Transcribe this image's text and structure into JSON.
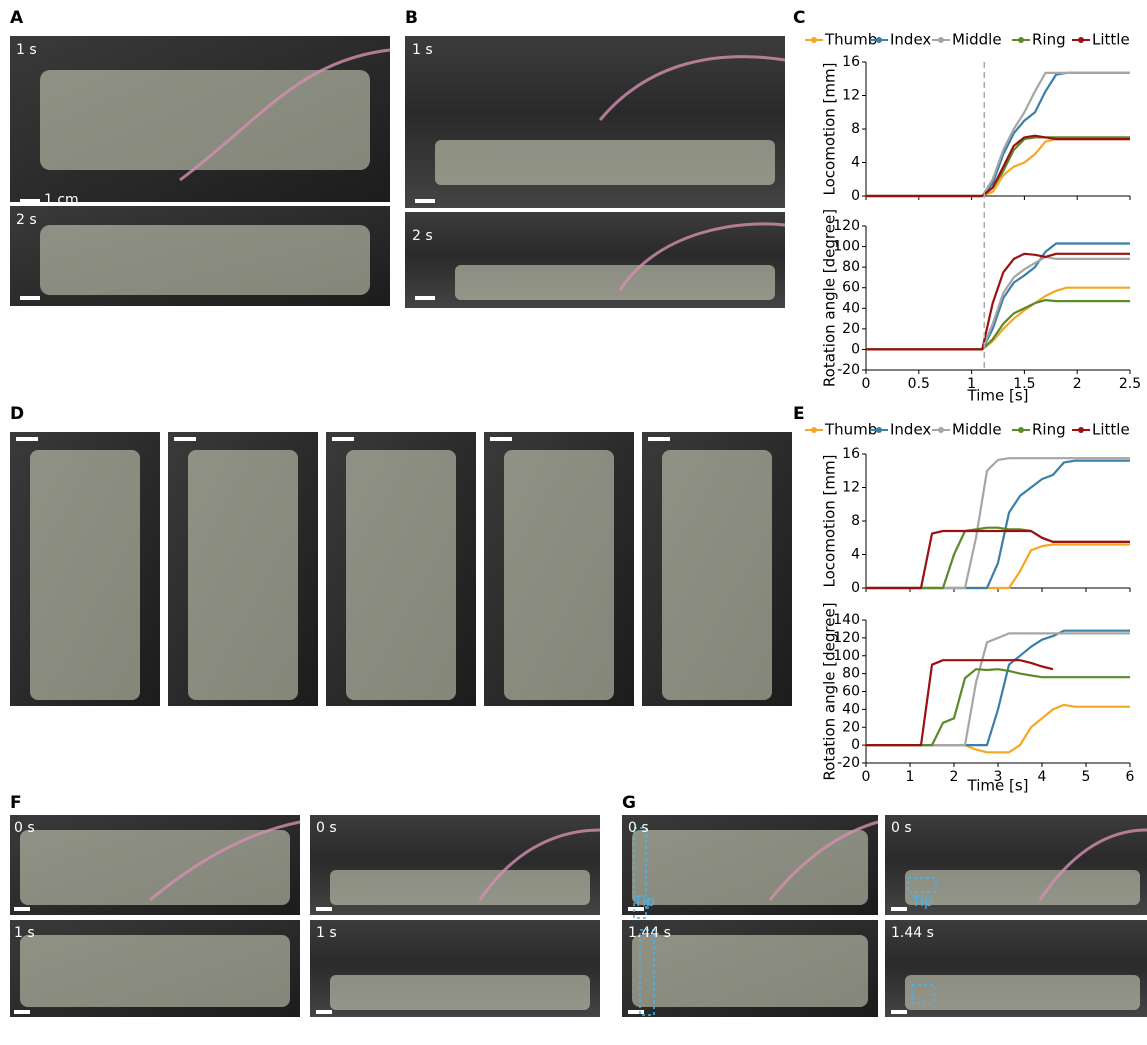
{
  "panel_labels": [
    "A",
    "B",
    "C",
    "D",
    "E",
    "F",
    "G"
  ],
  "a": {
    "times": [
      "1 s",
      "2 s"
    ],
    "scale_bar": "1 cm"
  },
  "b": {
    "times": [
      "1 s",
      "2 s"
    ]
  },
  "f": {
    "times": [
      "0 s",
      "0 s",
      "1 s",
      "1 s"
    ]
  },
  "g": {
    "times": [
      "0 s",
      "0 s",
      "1.44 s",
      "1.44 s"
    ],
    "tip": [
      "Tip",
      "Tip"
    ]
  },
  "chart_data": [
    {
      "type": "line",
      "xlabel": "Time [s]",
      "xlim": [
        0,
        2.5
      ],
      "xticks": [
        0,
        0.5,
        1,
        1.5,
        2,
        2.5
      ],
      "vline": 1.12,
      "x": [
        0,
        0.1,
        0.2,
        0.3,
        0.4,
        0.5,
        0.6,
        0.7,
        0.8,
        0.9,
        1.0,
        1.1,
        1.2,
        1.3,
        1.4,
        1.5,
        1.6,
        1.7,
        1.8,
        1.9,
        2.0,
        2.1,
        2.2,
        2.3,
        2.4,
        2.5
      ],
      "series": [
        {
          "name": "Thumb",
          "color": "#f5a623"
        },
        {
          "name": "Index",
          "color": "#3b7fa8"
        },
        {
          "name": "Middle",
          "color": "#a6a6a6"
        },
        {
          "name": "Ring",
          "color": "#5a8a2a"
        },
        {
          "name": "Little",
          "color": "#9b1111"
        }
      ],
      "subplots": [
        {
          "ylabel": "Locomotion [mm]",
          "ylim": [
            0,
            16
          ],
          "yticks": [
            0,
            4,
            8,
            12,
            16
          ],
          "series": [
            {
              "values": [
                0,
                0,
                0,
                0,
                0,
                0,
                0,
                0,
                0,
                0,
                0,
                0,
                0.5,
                2.5,
                3.5,
                4,
                5,
                6.5,
                6.8,
                6.8,
                6.8,
                6.8,
                6.8,
                6.8,
                6.8,
                6.8
              ]
            },
            {
              "values": [
                0,
                0,
                0,
                0,
                0,
                0,
                0,
                0,
                0,
                0,
                0,
                0,
                1.5,
                5,
                7.5,
                9,
                10,
                12.5,
                14.5,
                14.7,
                14.7,
                14.7,
                14.7,
                14.7,
                14.7,
                14.7
              ]
            },
            {
              "values": [
                0,
                0,
                0,
                0,
                0,
                0,
                0,
                0,
                0,
                0,
                0,
                0,
                2,
                5.5,
                8,
                10,
                12.5,
                14.7,
                14.7,
                14.7,
                14.7,
                14.7,
                14.7,
                14.7,
                14.7,
                14.7
              ]
            },
            {
              "values": [
                0,
                0,
                0,
                0,
                0,
                0,
                0,
                0,
                0,
                0,
                0,
                0,
                1,
                3,
                5.5,
                6.8,
                7,
                7,
                7,
                7,
                7,
                7,
                7,
                7,
                7,
                7
              ]
            },
            {
              "values": [
                0,
                0,
                0,
                0,
                0,
                0,
                0,
                0,
                0,
                0,
                0,
                0,
                1,
                3.5,
                6,
                7,
                7.2,
                7,
                6.8,
                6.8,
                6.8,
                6.8,
                6.8,
                6.8,
                6.8,
                6.8
              ]
            }
          ]
        },
        {
          "ylabel": "Rotation angle [degree]",
          "ylim": [
            -20,
            120
          ],
          "yticks": [
            -20,
            0,
            20,
            40,
            60,
            80,
            100,
            120
          ],
          "series": [
            {
              "values": [
                0,
                0,
                0,
                0,
                0,
                0,
                0,
                0,
                0,
                0,
                0,
                0,
                8,
                20,
                30,
                38,
                45,
                52,
                57,
                60,
                60,
                60,
                60,
                60,
                60,
                60
              ]
            },
            {
              "values": [
                0,
                0,
                0,
                0,
                0,
                0,
                0,
                0,
                0,
                0,
                0,
                0,
                20,
                50,
                65,
                72,
                80,
                95,
                103,
                103,
                103,
                103,
                103,
                103,
                103,
                103
              ]
            },
            {
              "values": [
                0,
                0,
                0,
                0,
                0,
                0,
                0,
                0,
                0,
                0,
                0,
                0,
                25,
                55,
                70,
                78,
                84,
                90,
                88,
                88,
                88,
                88,
                88,
                88,
                88,
                88
              ]
            },
            {
              "values": [
                0,
                0,
                0,
                0,
                0,
                0,
                0,
                0,
                0,
                0,
                0,
                0,
                10,
                25,
                35,
                40,
                45,
                48,
                47,
                47,
                47,
                47,
                47,
                47,
                47,
                47
              ]
            },
            {
              "values": [
                0,
                0,
                0,
                0,
                0,
                0,
                0,
                0,
                0,
                0,
                0,
                0,
                45,
                75,
                88,
                93,
                92,
                90,
                93,
                93,
                93,
                93,
                93,
                93,
                93,
                93
              ]
            }
          ]
        }
      ]
    },
    {
      "type": "line",
      "xlabel": "Time [s]",
      "xlim": [
        0,
        6
      ],
      "xticks": [
        0,
        1,
        2,
        3,
        4,
        5,
        6
      ],
      "x": [
        0,
        0.25,
        0.5,
        0.75,
        1,
        1.25,
        1.5,
        1.75,
        2,
        2.25,
        2.5,
        2.75,
        3,
        3.25,
        3.5,
        3.75,
        4,
        4.25,
        4.5,
        4.75,
        5,
        5.25,
        5.5,
        5.75,
        6
      ],
      "series": [
        {
          "name": "Thumb",
          "color": "#f5a623"
        },
        {
          "name": "Index",
          "color": "#3b7fa8"
        },
        {
          "name": "Middle",
          "color": "#a6a6a6"
        },
        {
          "name": "Ring",
          "color": "#5a8a2a"
        },
        {
          "name": "Little",
          "color": "#9b1111"
        }
      ],
      "subplots": [
        {
          "ylabel": "Locomotion [mm]",
          "ylim": [
            0,
            16
          ],
          "yticks": [
            0,
            4,
            8,
            12,
            16
          ],
          "series": [
            {
              "values": [
                0,
                0,
                0,
                0,
                0,
                0,
                0,
                0,
                0,
                0,
                0,
                0,
                0,
                0,
                2,
                4.5,
                5,
                5.2,
                5.2,
                5.2,
                5.2,
                5.2,
                5.2,
                5.2,
                5.2
              ]
            },
            {
              "values": [
                0,
                0,
                0,
                0,
                0,
                0,
                0,
                0,
                0,
                0,
                0,
                0,
                3,
                9,
                11,
                12,
                13,
                13.5,
                15,
                15.2,
                15.2,
                15.2,
                15.2,
                15.2,
                15.2
              ]
            },
            {
              "values": [
                0,
                0,
                0,
                0,
                0,
                0,
                0,
                0,
                0,
                0,
                6,
                14,
                15.3,
                15.5,
                15.5,
                15.5,
                15.5,
                15.5,
                15.5,
                15.5,
                15.5,
                15.5,
                15.5,
                15.5,
                15.5
              ]
            },
            {
              "values": [
                0,
                0,
                0,
                0,
                0,
                0,
                0,
                0,
                4,
                6.8,
                7,
                7.2,
                7.2,
                7,
                7,
                6.8,
                6,
                5.5,
                5.5,
                5.5,
                5.5,
                5.5,
                5.5,
                5.5,
                5.5
              ]
            },
            {
              "values": [
                0,
                0,
                0,
                0,
                0,
                0,
                6.5,
                6.8,
                6.8,
                6.8,
                6.8,
                6.8,
                6.8,
                6.8,
                6.8,
                6.8,
                6,
                5.5,
                5.5,
                5.5,
                5.5,
                5.5,
                5.5,
                5.5,
                5.5
              ]
            }
          ]
        },
        {
          "ylabel": "Rotation angle [degree]",
          "ylim": [
            -20,
            140
          ],
          "yticks": [
            -20,
            0,
            20,
            40,
            60,
            80,
            100,
            120,
            140
          ],
          "series": [
            {
              "values": [
                0,
                0,
                0,
                0,
                0,
                0,
                0,
                0,
                0,
                0,
                -5,
                -8,
                -8,
                -8,
                0,
                20,
                30,
                40,
                45,
                43,
                43,
                43,
                43,
                43,
                43
              ]
            },
            {
              "values": [
                0,
                0,
                0,
                0,
                0,
                0,
                0,
                0,
                0,
                0,
                0,
                0,
                40,
                90,
                100,
                110,
                118,
                122,
                128,
                128,
                128,
                128,
                128,
                128,
                128
              ]
            },
            {
              "values": [
                0,
                0,
                0,
                0,
                0,
                0,
                0,
                0,
                0,
                0,
                70,
                115,
                120,
                125,
                125,
                125,
                125,
                125,
                125,
                125,
                125,
                125,
                125,
                125,
                125
              ]
            },
            {
              "values": [
                0,
                0,
                0,
                0,
                0,
                0,
                0,
                25,
                30,
                75,
                85,
                84,
                85,
                83,
                80,
                78,
                76,
                76,
                76,
                76,
                76,
                76,
                76,
                76,
                76
              ]
            },
            {
              "values": [
                0,
                0,
                0,
                0,
                0,
                0,
                90,
                95,
                95,
                95,
                95,
                95,
                95,
                95,
                95,
                92,
                88,
                85,
                null,
                null,
                null,
                null,
                null,
                null,
                null
              ]
            }
          ]
        }
      ]
    }
  ]
}
